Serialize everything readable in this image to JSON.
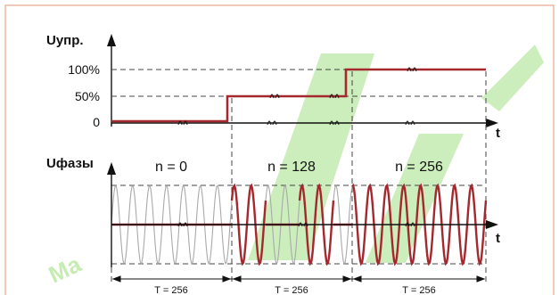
{
  "colors": {
    "frame": "#e5a88a",
    "signal": "#a4282e",
    "background_wave": "#a9a9a9",
    "dashed": "#444444",
    "watermark": "#8fd86a"
  },
  "top_chart": {
    "y_axis_label": "Uупр.",
    "x_axis_label": "t",
    "y_ticks": [
      "100%",
      "50%",
      "0"
    ],
    "levels_percent": [
      0,
      50,
      100
    ]
  },
  "bottom_chart": {
    "y_axis_label": "Uфазы",
    "x_axis_label": "t",
    "segments": [
      {
        "n_label": "n = 0",
        "period_label": "T = 256",
        "active_half_cycles": 0
      },
      {
        "n_label": "n = 128",
        "period_label": "T = 256",
        "active_half_cycles": 128
      },
      {
        "n_label": "n = 256",
        "period_label": "T = 256",
        "active_half_cycles": 256
      }
    ]
  },
  "watermark_text": "Ма"
}
